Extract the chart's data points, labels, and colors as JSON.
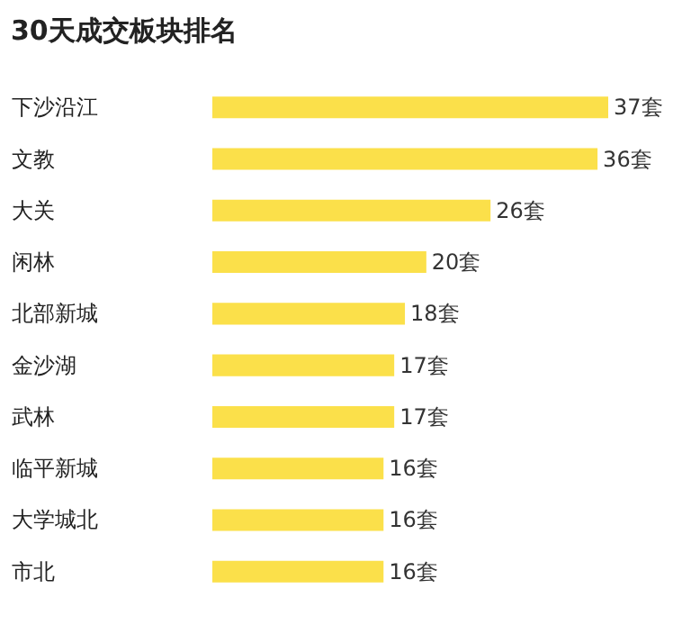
{
  "chart_data": {
    "type": "bar",
    "orientation": "horizontal",
    "title": "30天成交板块排名",
    "categories": [
      "下沙沿江",
      "文教",
      "大关",
      "闲林",
      "北部新城",
      "金沙湖",
      "武林",
      "临平新城",
      "大学城北",
      "市北"
    ],
    "values": [
      37,
      36,
      26,
      20,
      18,
      17,
      17,
      16,
      16,
      16
    ],
    "value_labels": [
      "37套",
      "36套",
      "26套",
      "20套",
      "18套",
      "17套",
      "17套",
      "16套",
      "16套",
      "16套"
    ],
    "color": "#fbe04a"
  }
}
